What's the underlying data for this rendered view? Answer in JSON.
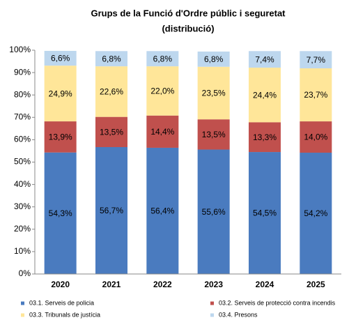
{
  "chart_data": {
    "type": "stacked_bar",
    "title": "Grups de la Funció d'Ordre públic i seguretat",
    "subtitle": "(distribució)",
    "categories": [
      "2020",
      "2021",
      "2022",
      "2023",
      "2024",
      "2025"
    ],
    "series": [
      {
        "name": "03.1. Serveis de policia",
        "color": "#4a7bbf",
        "values": [
          54.3,
          56.7,
          56.4,
          55.6,
          54.5,
          54.2
        ],
        "value_labels": [
          "54,3%",
          "56,7%",
          "56,4%",
          "55,6%",
          "54,5%",
          "54,2%"
        ]
      },
      {
        "name": "03.2. Serveis de protecció contra incendis",
        "color": "#c0504d",
        "values": [
          13.9,
          13.5,
          14.4,
          13.5,
          13.3,
          14.0
        ],
        "value_labels": [
          "13,9%",
          "13,5%",
          "14,4%",
          "13,5%",
          "13,3%",
          "14,0%"
        ]
      },
      {
        "name": "03.3. Tribunals de justícia",
        "color": "#ffe699",
        "values": [
          24.9,
          22.6,
          22.0,
          23.5,
          24.4,
          23.7
        ],
        "value_labels": [
          "24,9%",
          "22,6%",
          "22,0%",
          "23,5%",
          "24,4%",
          "23,7%"
        ]
      },
      {
        "name": "03.4. Presons",
        "color": "#bdd7ee",
        "values": [
          6.6,
          6.8,
          6.8,
          6.8,
          7.4,
          7.7
        ],
        "value_labels": [
          "6,6%",
          "6,8%",
          "6,8%",
          "6,8%",
          "7,4%",
          "7,7%"
        ]
      }
    ],
    "ylim": [
      0,
      100
    ],
    "yticks": [
      {
        "value": 0,
        "label": "0%"
      },
      {
        "value": 10,
        "label": "10%"
      },
      {
        "value": 20,
        "label": "20%"
      },
      {
        "value": 30,
        "label": "30%"
      },
      {
        "value": 40,
        "label": "40%"
      },
      {
        "value": 50,
        "label": "50%"
      },
      {
        "value": 60,
        "label": "60%"
      },
      {
        "value": 70,
        "label": "70%"
      },
      {
        "value": 80,
        "label": "80%"
      },
      {
        "value": 90,
        "label": "90%"
      },
      {
        "value": 100,
        "label": "100%"
      }
    ],
    "legend": "bottom"
  }
}
